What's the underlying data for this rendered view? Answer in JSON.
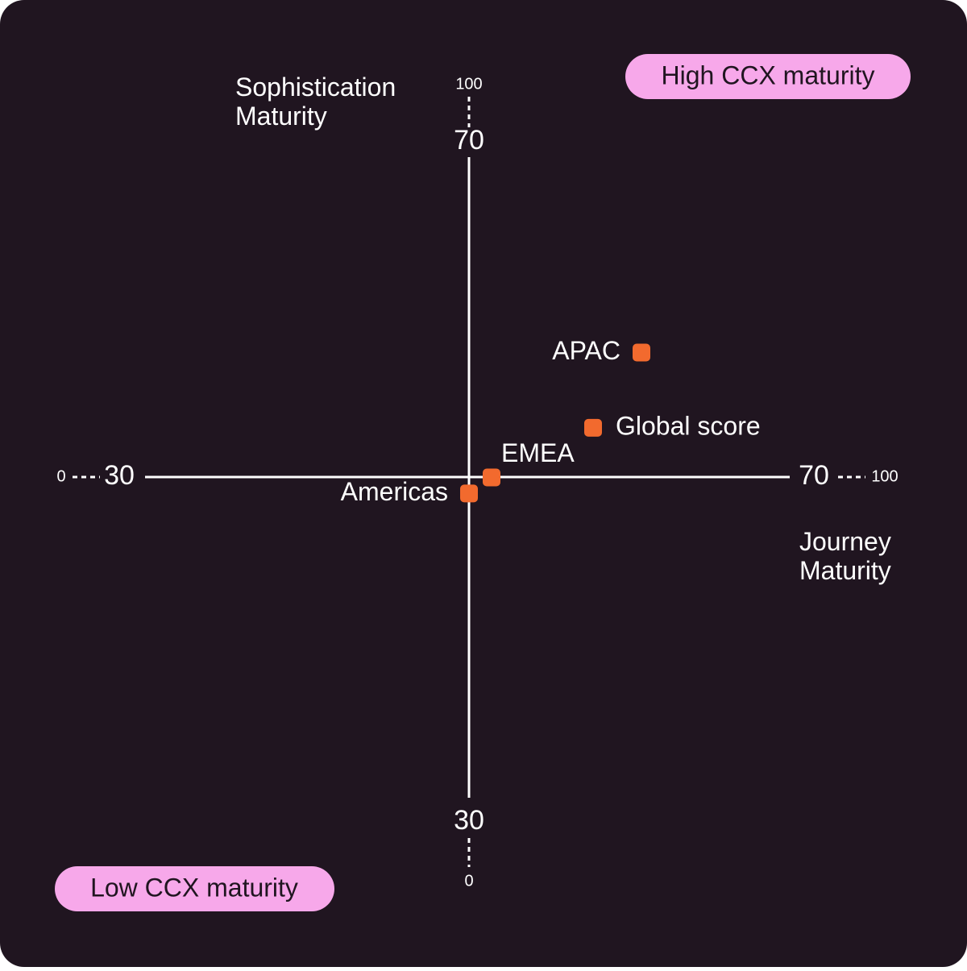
{
  "chart_data": {
    "type": "scatter",
    "xlabel": "Journey Maturity",
    "ylabel": "Sophistication Maturity",
    "annotations": [
      "High CCX maturity",
      "Low CCX maturity"
    ],
    "labels": [
      "APAC",
      "Global score",
      "EMEA",
      "Americas"
    ],
    "x": [
      60.8,
      57.8,
      51.5,
      50.1
    ],
    "y": [
      57.8,
      53.1,
      50.0,
      49.0
    ],
    "color": "#f26a2e",
    "xlim": [
      30,
      70
    ],
    "ylim": [
      30,
      70
    ],
    "xticks": [
      0,
      30,
      70,
      100
    ],
    "yticks": [
      0,
      30,
      70,
      100
    ]
  }
}
